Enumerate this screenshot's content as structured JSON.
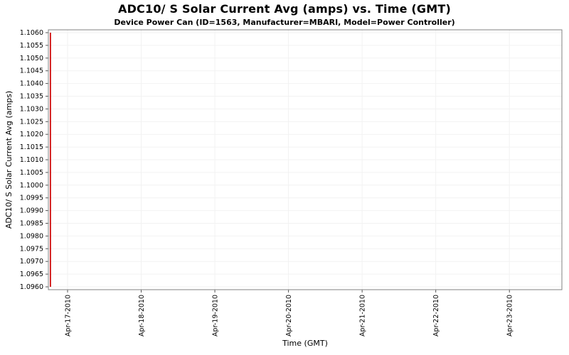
{
  "chart_data": {
    "type": "line",
    "title": "ADC10/ S Solar Current Avg (amps) vs. Time (GMT)",
    "subtitle": "Device Power Can (ID=1563, Manufacturer=MBARI, Model=Power Controller)",
    "xlabel": "Time (GMT)",
    "ylabel": "ADC10/ S Solar Current Avg (amps)",
    "ylim": [
      1.096,
      1.106
    ],
    "y_tick_step": 0.0005,
    "y_ticks": [
      "1.0960",
      "1.0965",
      "1.0970",
      "1.0975",
      "1.0980",
      "1.0985",
      "1.0990",
      "1.0995",
      "1.1000",
      "1.1005",
      "1.1010",
      "1.1015",
      "1.1020",
      "1.1025",
      "1.1030",
      "1.1035",
      "1.1040",
      "1.1045",
      "1.1050",
      "1.1055",
      "1.1060"
    ],
    "x_ticks": [
      "Apr-17-2010",
      "Apr-18-2010",
      "Apr-19-2010",
      "Apr-20-2010",
      "Apr-21-2010",
      "Apr-22-2010",
      "Apr-23-2010"
    ],
    "x_tick_first_frac": 0.0374,
    "x_tick_step_frac": 0.1434,
    "grid": true,
    "legend": "none",
    "series": [
      {
        "name": "ADC10/ S Solar Current Avg",
        "shape": "vertical-spike",
        "x_frac": 0.004,
        "y_min": 1.096,
        "y_max": 1.106,
        "color": "#cc0000"
      }
    ],
    "colors": {
      "plot_background": "#ffffff",
      "plot_border": "#808080",
      "gridline": "#f2f2f2",
      "tick": "#555555",
      "text": "#000000",
      "series": "#cc0000"
    }
  }
}
